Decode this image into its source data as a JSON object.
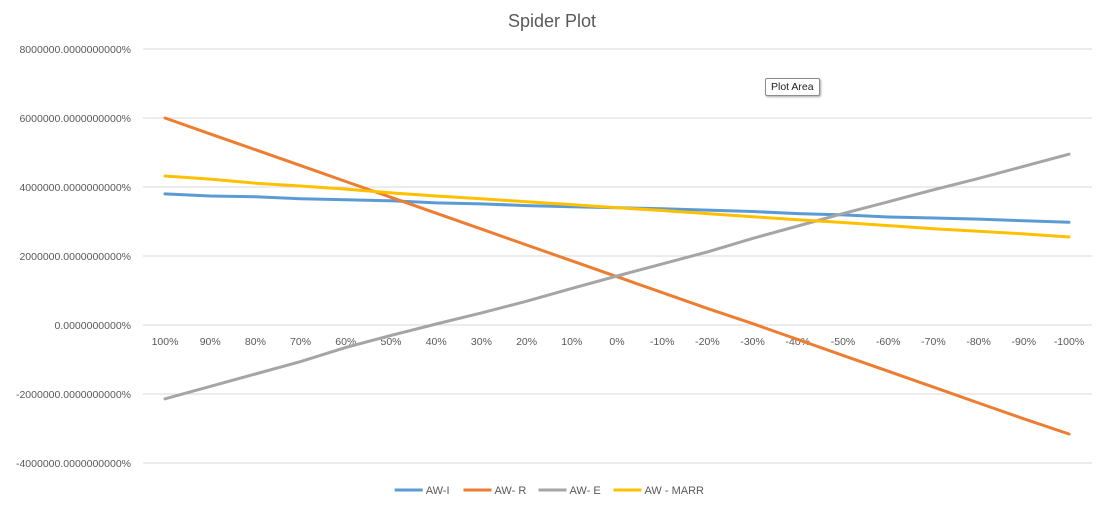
{
  "chart_data": {
    "type": "line",
    "title": "Spider Plot",
    "xlabel": "",
    "ylabel": "",
    "categories": [
      "100%",
      "90%",
      "80%",
      "70%",
      "60%",
      "50%",
      "40%",
      "30%",
      "20%",
      "10%",
      "0%",
      "-10%",
      "-20%",
      "-30%",
      "-40%",
      "-50%",
      "-60%",
      "-70%",
      "-80%",
      "-90%",
      "-100%"
    ],
    "ylim": [
      -4000000,
      8000000
    ],
    "yticks": [
      {
        "value": 8000000,
        "label": "8000000.0000000000%"
      },
      {
        "value": 6000000,
        "label": "6000000.0000000000%"
      },
      {
        "value": 4000000,
        "label": "4000000.0000000000%"
      },
      {
        "value": 2000000,
        "label": "2000000.0000000000%"
      },
      {
        "value": 0,
        "label": "0.0000000000%"
      },
      {
        "value": -2000000,
        "label": "-2000000.0000000000%"
      },
      {
        "value": -4000000,
        "label": "-4000000.0000000000%"
      }
    ],
    "grid": true,
    "legend_position": "bottom",
    "series": [
      {
        "name": "AW-I",
        "color": "#5B9BD5",
        "values": [
          3800000,
          3740000,
          3720000,
          3660000,
          3630000,
          3600000,
          3540000,
          3510000,
          3460000,
          3430000,
          3400000,
          3370000,
          3330000,
          3290000,
          3230000,
          3190000,
          3130000,
          3100000,
          3070000,
          3020000,
          2980000
        ]
      },
      {
        "name": "AW- R",
        "color": "#ED7D31",
        "values": [
          6000000,
          5540000,
          5080000,
          4620000,
          4160000,
          3700000,
          3240000,
          2780000,
          2320000,
          1860000,
          1400000,
          940000,
          480000,
          40000,
          -420000,
          -880000,
          -1340000,
          -1800000,
          -2260000,
          -2720000,
          -3160000
        ]
      },
      {
        "name": "AW- E",
        "color": "#A5A5A5",
        "values": [
          -2140000,
          -1780000,
          -1420000,
          -1060000,
          -650000,
          -300000,
          30000,
          350000,
          690000,
          1060000,
          1420000,
          1770000,
          2120000,
          2510000,
          2870000,
          3230000,
          3570000,
          3920000,
          4250000,
          4600000,
          4950000
        ]
      },
      {
        "name": "AW - MARR",
        "color": "#FFC000",
        "values": [
          4320000,
          4230000,
          4110000,
          4030000,
          3940000,
          3830000,
          3740000,
          3660000,
          3570000,
          3490000,
          3400000,
          3320000,
          3230000,
          3140000,
          3050000,
          2970000,
          2880000,
          2790000,
          2720000,
          2640000,
          2550000
        ]
      }
    ],
    "tooltip": "Plot Area"
  }
}
